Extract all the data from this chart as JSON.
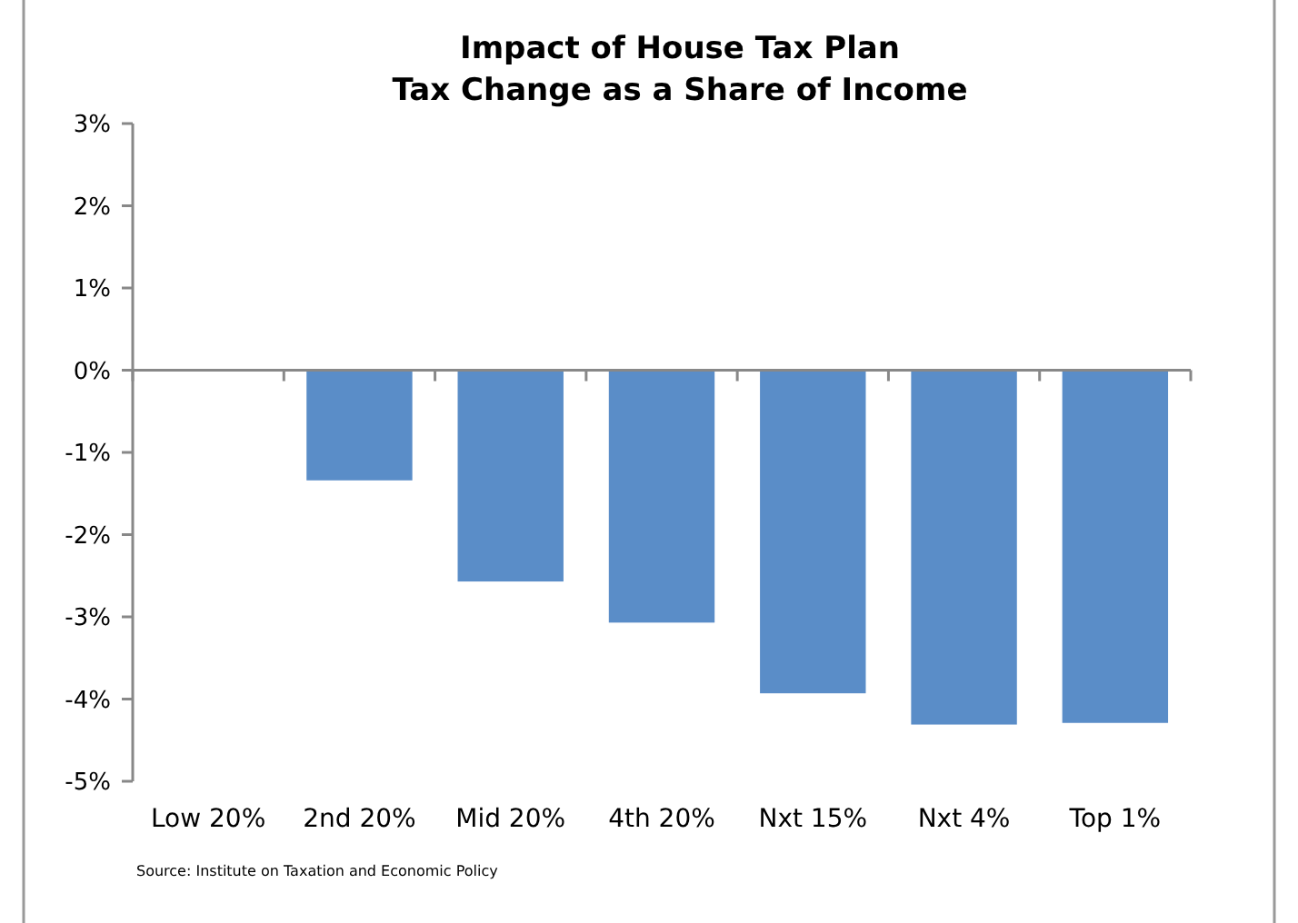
{
  "chart_data": {
    "type": "bar",
    "title": "Impact of House Tax Plan\nTax Change as a Share of Income",
    "categories": [
      "Low 20%",
      "2nd 20%",
      "Mid 20%",
      "4th 20%",
      "Nxt 15%",
      "Nxt 4%",
      "Top 1%"
    ],
    "values": [
      0,
      -1.34,
      -2.57,
      -3.07,
      -3.93,
      -4.31,
      -4.29
    ],
    "color": "#5a8dc8",
    "ylim": [
      -5,
      3
    ],
    "yticks": [
      {
        "value": -5,
        "label": "-5%"
      },
      {
        "value": -4,
        "label": "-4%"
      },
      {
        "value": -3,
        "label": "-3%"
      },
      {
        "value": -2,
        "label": "-2%"
      },
      {
        "value": -1,
        "label": "-1%"
      },
      {
        "value": 0,
        "label": "0%"
      },
      {
        "value": 1,
        "label": "1%"
      },
      {
        "value": 2,
        "label": "2%"
      },
      {
        "value": 3,
        "label": "3%"
      }
    ],
    "annotations": [
      "Source: Institute on Taxation and Economic Policy"
    ]
  }
}
